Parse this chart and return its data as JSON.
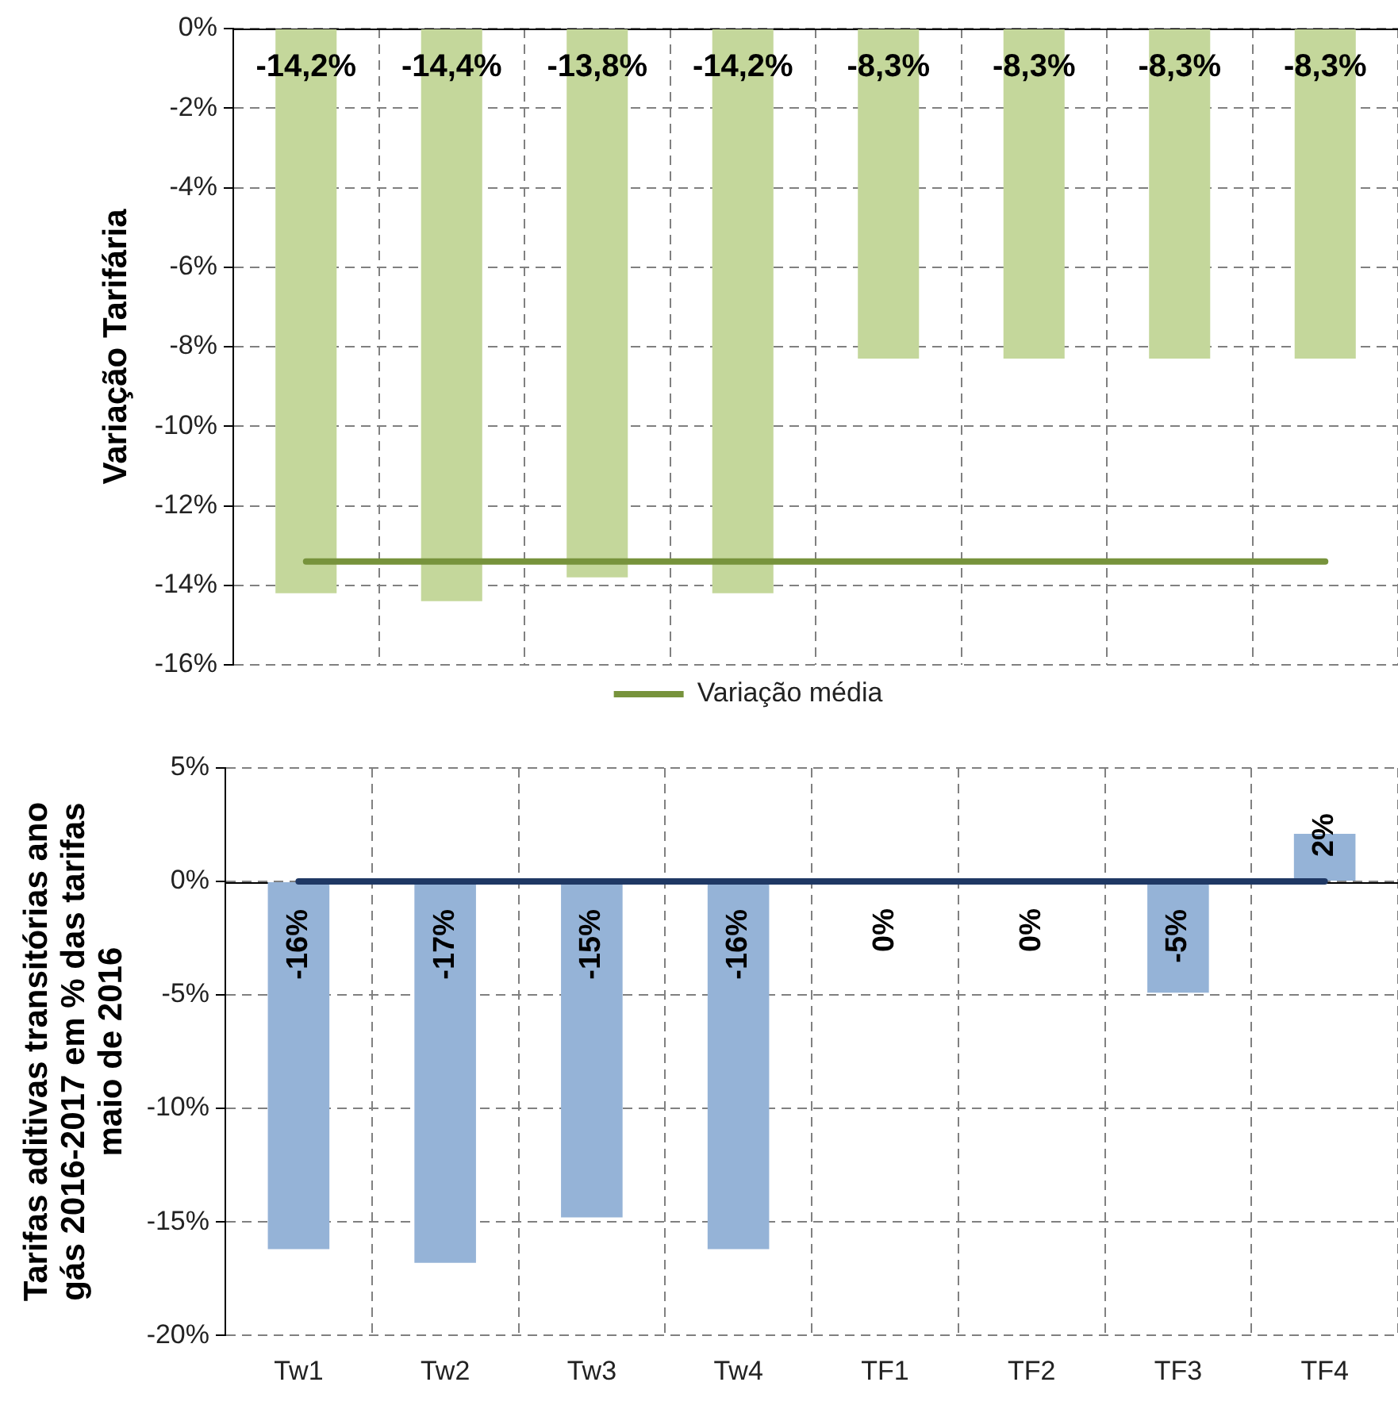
{
  "chart_data": [
    {
      "type": "bar",
      "ylabel": "Variação Tarifária",
      "categories": [
        null,
        null,
        null,
        null,
        null,
        null,
        null,
        null
      ],
      "series": [
        {
          "color": "#c4d79b",
          "values": [
            -14.2,
            -14.4,
            -13.8,
            -14.2,
            -8.3,
            -8.3,
            -8.3,
            -8.3
          ],
          "value_labels": [
            "-14,2%",
            "-14,4%",
            "-13,8%",
            "-14,2%",
            "-8,3%",
            "-8,3%",
            "-8,3%",
            "-8,3%"
          ]
        },
        {
          "type": "line",
          "name": "Variação média",
          "color": "#77933c",
          "values": [
            -13.4,
            -13.4,
            -13.4,
            -13.4,
            -13.4,
            -13.4,
            -13.4,
            -13.4
          ]
        }
      ],
      "ylim": [
        -16,
        0
      ],
      "yticks": [
        {
          "value": -16,
          "label": "-16%"
        },
        {
          "value": -14,
          "label": "-14%"
        },
        {
          "value": -12,
          "label": "-12%"
        },
        {
          "value": -10,
          "label": "-10%"
        },
        {
          "value": -8,
          "label": "-8%"
        },
        {
          "value": -6,
          "label": "-6%"
        },
        {
          "value": -4,
          "label": "-4%"
        },
        {
          "value": -2,
          "label": "-2%"
        },
        {
          "value": 0,
          "label": "0%"
        }
      ],
      "grid": true,
      "legend": "bottom",
      "marker": "none"
    },
    {
      "type": "bar",
      "ylabel": "Tarifas aditivas transitórias ano gás 2016-2017 em % das tarifas maio de 2016",
      "categories": [
        "Tw1",
        "Tw2",
        "Tw3",
        "Tw4",
        "TF1",
        "TF2",
        "TF3",
        "TF4"
      ],
      "series": [
        {
          "color": "#95b3d7",
          "values": [
            -16.2,
            -16.8,
            -14.8,
            -16.2,
            0,
            0,
            -4.9,
            2.1
          ],
          "value_labels": [
            "-16%",
            "-17%",
            "-15%",
            "-16%",
            "0%",
            "0%",
            "-5%",
            "2%"
          ]
        },
        {
          "type": "line",
          "color": "#1f3864",
          "values": [
            0,
            0,
            0,
            0,
            0,
            0,
            0,
            0
          ]
        }
      ],
      "ylim": [
        -20,
        5
      ],
      "yticks": [
        {
          "value": -20,
          "label": "-20%"
        },
        {
          "value": -15,
          "label": "-15%"
        },
        {
          "value": -10,
          "label": "-10%"
        },
        {
          "value": -5,
          "label": "-5%"
        },
        {
          "value": 0,
          "label": "0%"
        },
        {
          "value": 5,
          "label": "5%"
        }
      ],
      "grid": true,
      "marker": "none"
    }
  ]
}
